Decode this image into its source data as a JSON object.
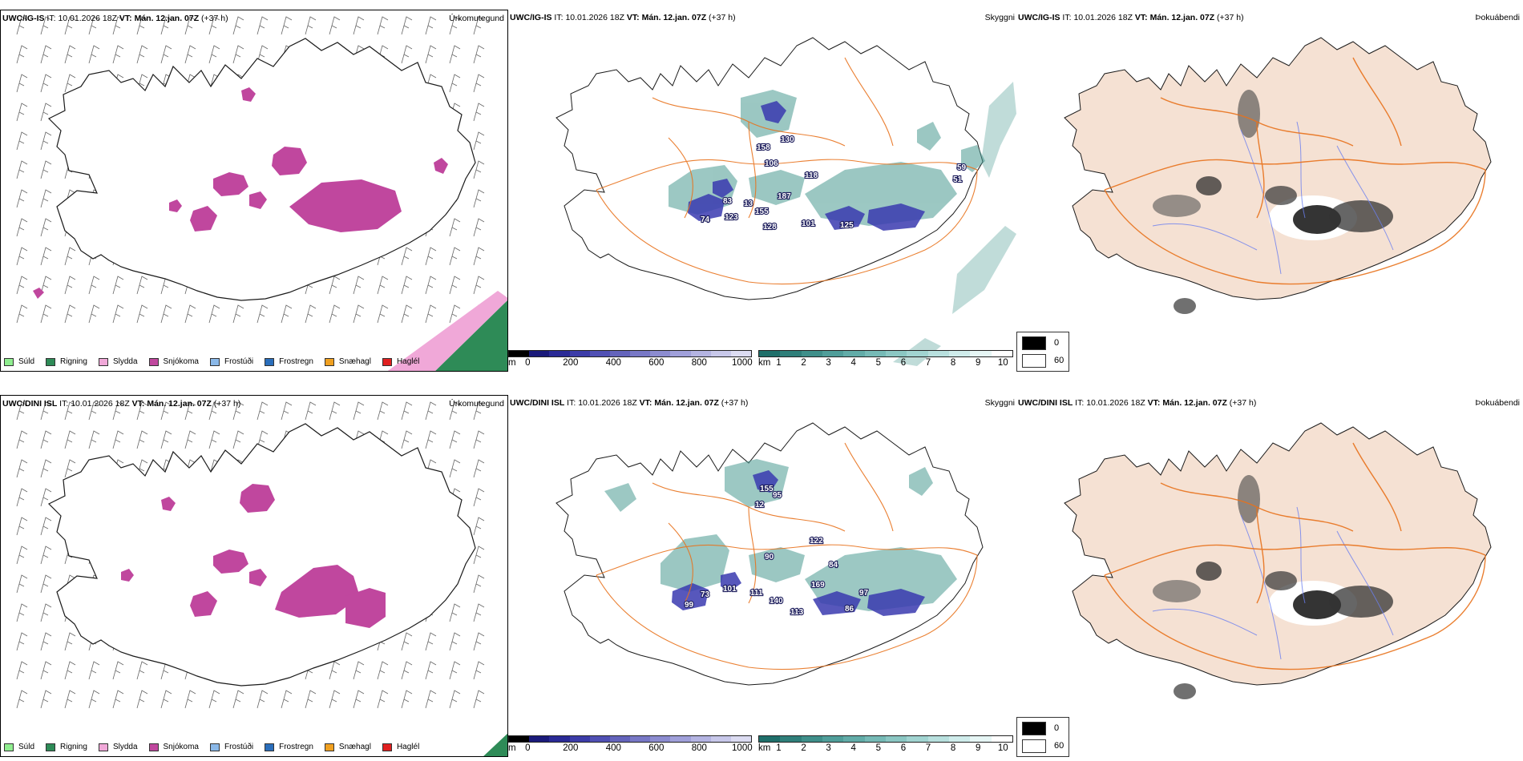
{
  "rows": [
    {
      "model": "UWC/IG-IS",
      "it_label": "IT:",
      "it_value": "10.01.2026 18Z",
      "vt_label": "VT:",
      "vt_value": "Mán. 12.jan. 07Z",
      "lead": "(+37 h)",
      "labels": [
        {
          "text": "74"
        },
        {
          "text": "83"
        },
        {
          "text": "123"
        },
        {
          "text": "13"
        },
        {
          "text": "155"
        },
        {
          "text": "128"
        },
        {
          "text": "101"
        },
        {
          "text": "125"
        },
        {
          "text": "187"
        },
        {
          "text": "118"
        },
        {
          "text": "106"
        },
        {
          "text": "130"
        },
        {
          "text": "158"
        },
        {
          "text": "59"
        },
        {
          "text": "51"
        }
      ]
    },
    {
      "model": "UWC/DINI ISL",
      "it_label": "IT:",
      "it_value": "10.01.2026 18Z",
      "vt_label": "VT:",
      "vt_value": "Mán. 12.jan. 07Z",
      "lead": "(+37 h)",
      "labels": [
        {
          "text": "99"
        },
        {
          "text": "73"
        },
        {
          "text": "101"
        },
        {
          "text": "111"
        },
        {
          "text": "140"
        },
        {
          "text": "113"
        },
        {
          "text": "86"
        },
        {
          "text": "97"
        },
        {
          "text": "169"
        },
        {
          "text": "84"
        },
        {
          "text": "90"
        },
        {
          "text": "122"
        },
        {
          "text": "155"
        },
        {
          "text": "95"
        },
        {
          "text": "12"
        }
      ]
    }
  ],
  "panel_titles": {
    "precip_type": "Úrkomutegund",
    "visibility": "Skyggni",
    "fog": "Þokuábendi"
  },
  "precip_legend": [
    {
      "label": "Súld",
      "color": "#90ee90"
    },
    {
      "label": "Rigning",
      "color": "#2e8b57"
    },
    {
      "label": "Slydda",
      "color": "#f0a8d8"
    },
    {
      "label": "Snjókoma",
      "color": "#c0479e"
    },
    {
      "label": "Frostúði",
      "color": "#8ab8e8"
    },
    {
      "label": "Frostregn",
      "color": "#2a6ebb"
    },
    {
      "label": "Snæhagl",
      "color": "#f0a020"
    },
    {
      "label": "Haglél",
      "color": "#e02020"
    }
  ],
  "ceiling_bar": {
    "unit": "m",
    "ticks": [
      "0",
      "200",
      "400",
      "600",
      "800",
      "1000"
    ],
    "colors": [
      "#000000",
      "#1a1a7a",
      "#2a2a96",
      "#3c3ca8",
      "#5050b4",
      "#6464bc",
      "#7878c6",
      "#8c8cd0",
      "#a0a0da",
      "#b4b4e2",
      "#c8c8ea",
      "#dcdcf2"
    ]
  },
  "vis_bar": {
    "unit": "km",
    "ticks": [
      "1",
      "2",
      "3",
      "4",
      "5",
      "6",
      "7",
      "8",
      "9",
      "10"
    ],
    "colors": [
      "#1f6f6a",
      "#2f7f7a",
      "#3f8f8a",
      "#509e9a",
      "#62aca8",
      "#76bab6",
      "#8bc7c3",
      "#a1d4d1",
      "#b8e0de",
      "#cfeceb",
      "#e6f6f5",
      "#ffffff"
    ]
  },
  "fog_legend": [
    {
      "label": "0",
      "color": "#000000"
    },
    {
      "label": "60",
      "color": "#ffffff"
    }
  ],
  "colors": {
    "land_fog": "#f5e1d3",
    "roads": "#e8721c",
    "rivers": "#6a7ef0",
    "coast": "#1a1a1a",
    "snow": "#c0479e",
    "rain": "#2e8b57",
    "sleet": "#f0a8d8",
    "vis_teal": "#4a9a92",
    "ceiling_blue": "#3a3ab0"
  }
}
